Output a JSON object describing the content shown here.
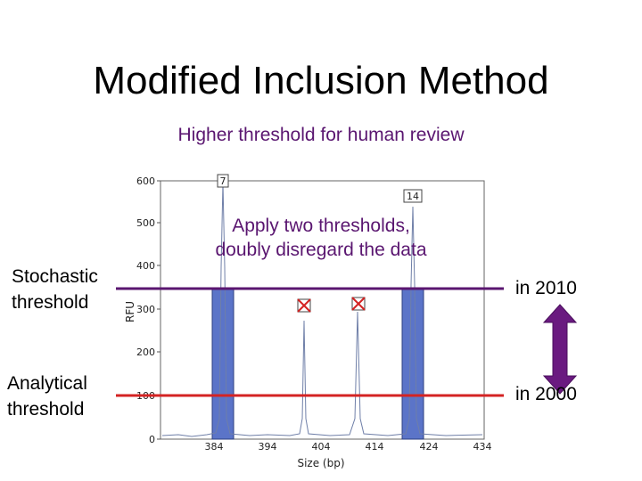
{
  "slide": {
    "title": "Modified Inclusion Method",
    "subtitle": "Higher threshold for human review",
    "callout_line1": "Apply two thresholds,",
    "callout_line2": "doubly disregard the data",
    "stochastic_label_line1": "Stochastic",
    "stochastic_label_line2": "threshold",
    "analytical_label_line1": "Analytical",
    "analytical_label_line2": "threshold",
    "year_stochastic": "in 2010",
    "year_analytical": "in 2000"
  },
  "plot": {
    "y_axis_label": "RFU",
    "x_axis_label": "Size (bp)",
    "y_ticks": [
      "0",
      "100",
      "200",
      "300",
      "400",
      "500",
      "600"
    ],
    "x_ticks": [
      "384",
      "394",
      "404",
      "414",
      "424",
      "434"
    ],
    "allele_labels": [
      "7",
      "14"
    ]
  },
  "colors": {
    "threshold_line": "#d42323",
    "stochastic_line": "#5a1670",
    "bar_fill": "#5b74c8",
    "arrow_fill": "#6a1a80",
    "text_accent": "#5a1670"
  }
}
